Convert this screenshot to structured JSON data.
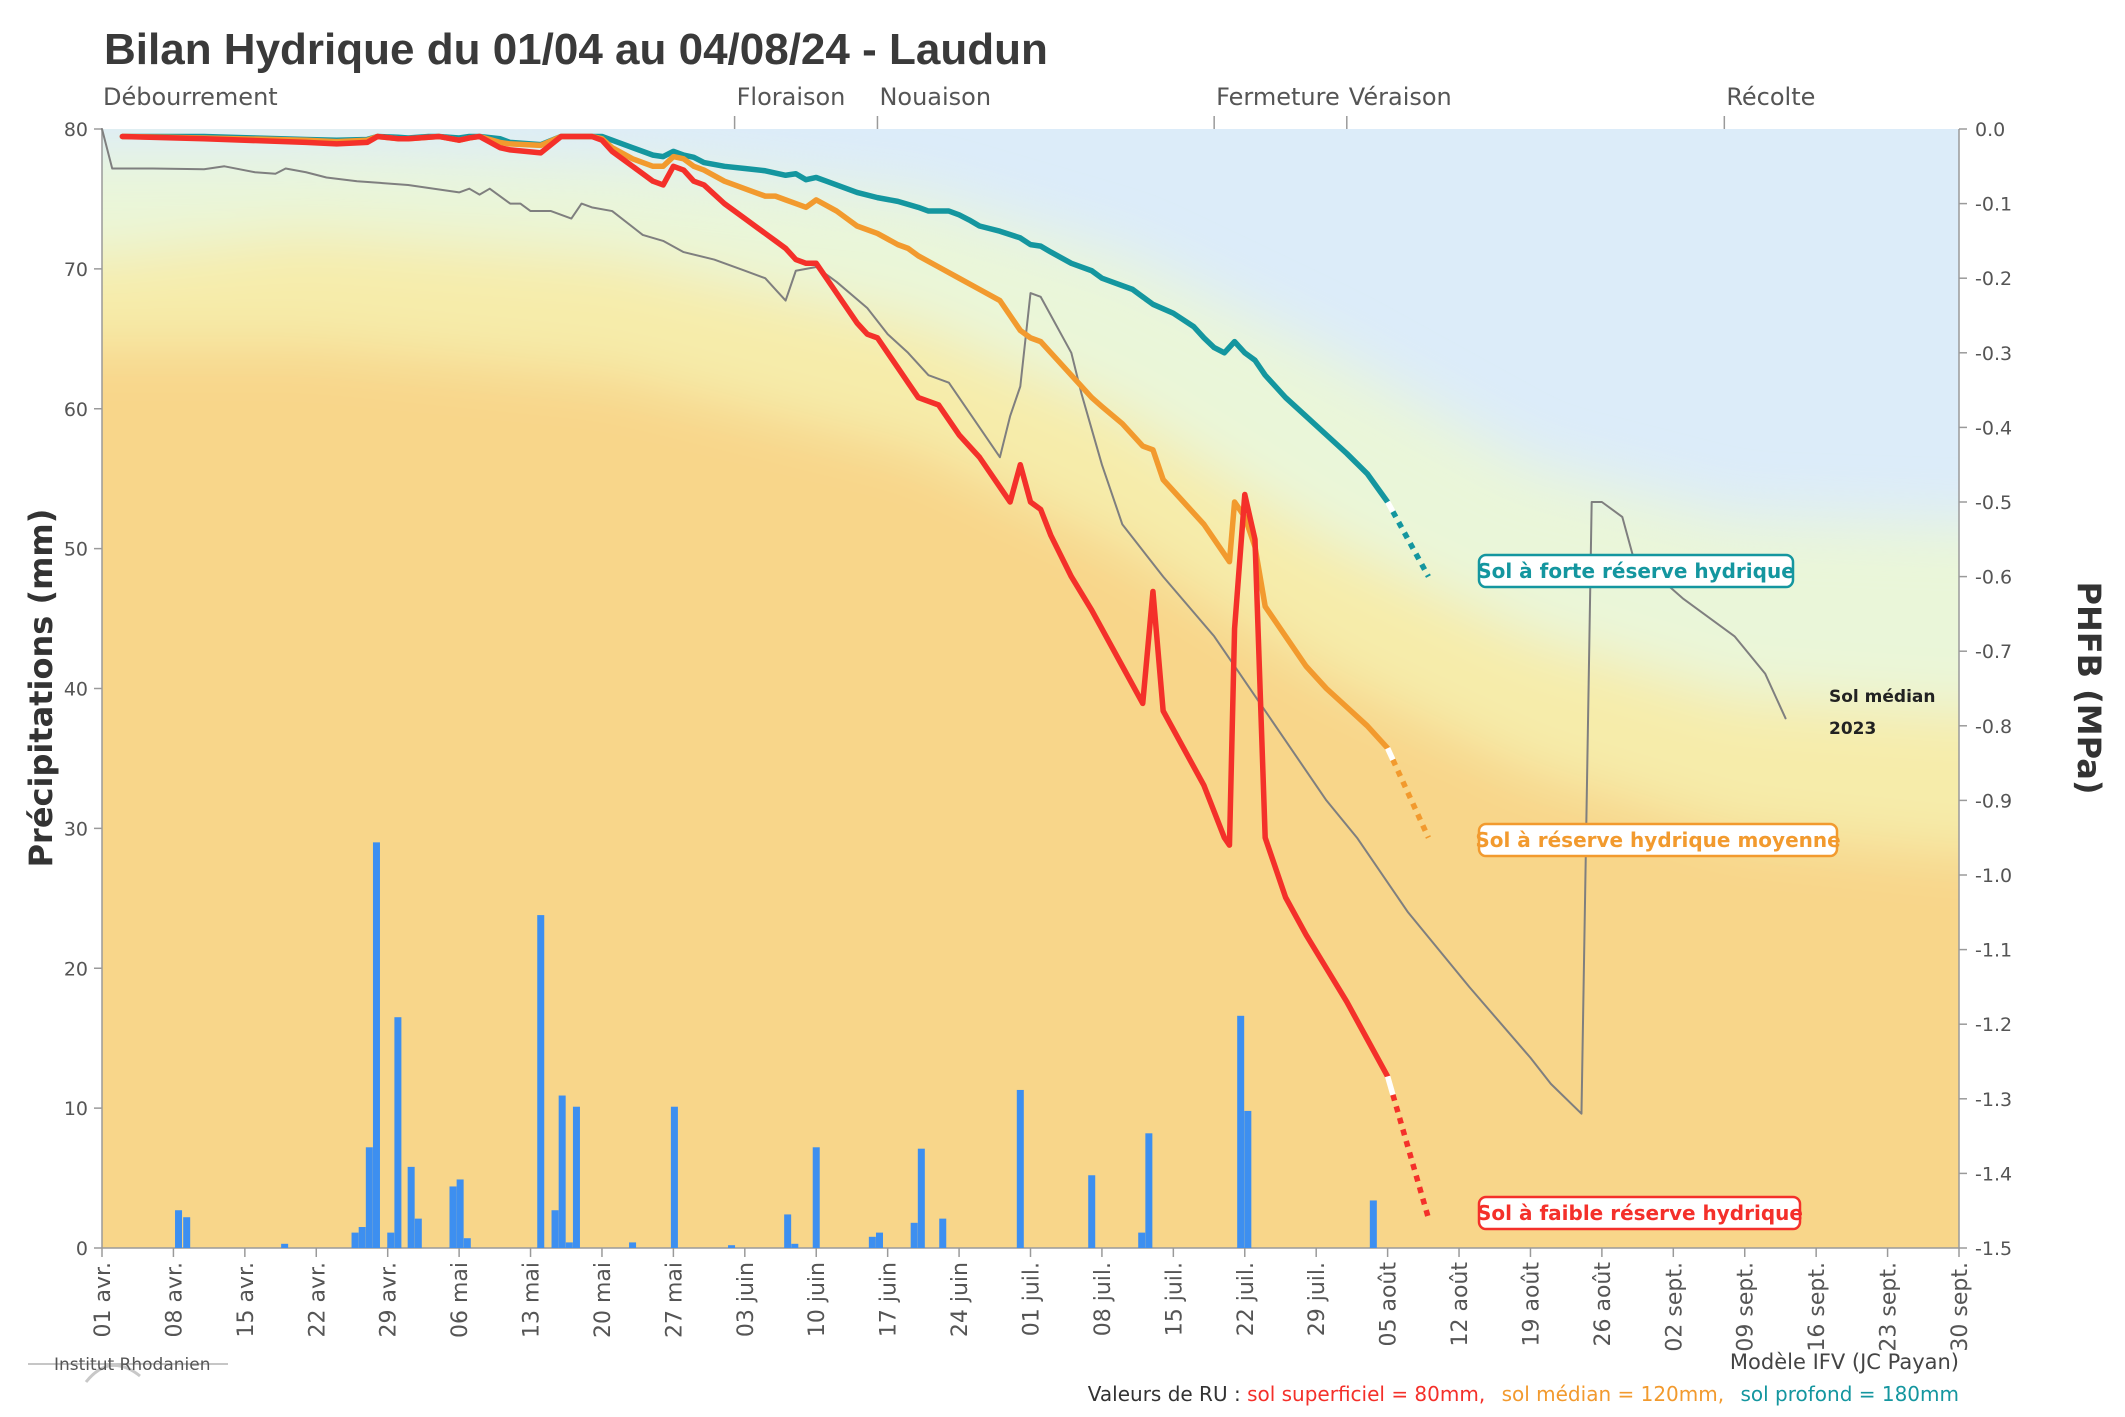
{
  "chart_data": {
    "type": "line",
    "title": "Bilan Hydrique du 01/04 au 04/08/24 - Laudun",
    "ylabel_left": "Précipitations (mm)",
    "ylabel_right": "PHFB (MPa)",
    "ylim_left": [
      0,
      80
    ],
    "ylim_right": [
      -1.5,
      0.0
    ],
    "y_ticks_left": [
      0,
      10,
      20,
      30,
      40,
      50,
      60,
      70,
      80
    ],
    "y_ticks_right": [
      0.0,
      -0.1,
      -0.2,
      -0.3,
      -0.4,
      -0.5,
      -0.6,
      -0.7,
      -0.8,
      -0.9,
      -1.0,
      -1.1,
      -1.2,
      -1.3,
      -1.4,
      -1.5
    ],
    "y_tick_labels_right": [
      "0.0",
      "-0.1",
      "-0.2",
      "-0.3",
      "-0.4",
      "-0.5",
      "-0.6",
      "-0.7",
      "-0.8",
      "-0.9",
      "-1.0",
      "-1.1",
      "-1.2",
      "-1.3",
      "-1.4",
      "-1.5"
    ],
    "x_day_range": [
      0,
      182
    ],
    "x_ticks": [
      {
        "day": 0,
        "label": "01 avr."
      },
      {
        "day": 7,
        "label": "08 avr."
      },
      {
        "day": 14,
        "label": "15 avr."
      },
      {
        "day": 21,
        "label": "22 avr."
      },
      {
        "day": 28,
        "label": "29 avr."
      },
      {
        "day": 35,
        "label": "06 mai"
      },
      {
        "day": 42,
        "label": "13 mai"
      },
      {
        "day": 49,
        "label": "20 mai"
      },
      {
        "day": 56,
        "label": "27 mai"
      },
      {
        "day": 63,
        "label": "03 juin"
      },
      {
        "day": 70,
        "label": "10 juin"
      },
      {
        "day": 77,
        "label": "17 juin"
      },
      {
        "day": 84,
        "label": "24 juin"
      },
      {
        "day": 91,
        "label": "01 juil."
      },
      {
        "day": 98,
        "label": "08 juil."
      },
      {
        "day": 105,
        "label": "15 juil."
      },
      {
        "day": 112,
        "label": "22 juil."
      },
      {
        "day": 119,
        "label": "29 juil."
      },
      {
        "day": 126,
        "label": "05 août"
      },
      {
        "day": 133,
        "label": "12 août"
      },
      {
        "day": 140,
        "label": "19 août"
      },
      {
        "day": 147,
        "label": "26 août"
      },
      {
        "day": 154,
        "label": "02 sept."
      },
      {
        "day": 161,
        "label": "09 sept."
      },
      {
        "day": 168,
        "label": "16 sept."
      },
      {
        "day": 175,
        "label": "23 sept."
      },
      {
        "day": 182,
        "label": "30 sept."
      }
    ],
    "stages": [
      {
        "day": 0,
        "label": "Débourrement"
      },
      {
        "day": 62,
        "label": "Floraison"
      },
      {
        "day": 76,
        "label": "Nouaison"
      },
      {
        "day": 109,
        "label": "Fermeture"
      },
      {
        "day": 122,
        "label": "Véraison"
      },
      {
        "day": 159,
        "label": "Récolte"
      }
    ],
    "precipitation": {
      "name": "Précipitations",
      "color": "#3d8ff0",
      "unit": "mm",
      "days": [
        7.5,
        8.3,
        17.9,
        24.8,
        25.5,
        26.2,
        26.9,
        28.3,
        29.0,
        30.3,
        31.0,
        34.4,
        35.1,
        35.8,
        43.0,
        44.4,
        45.1,
        45.8,
        46.5,
        52.0,
        56.1,
        61.7,
        67.2,
        67.9,
        70.0,
        75.5,
        76.2,
        79.6,
        80.3,
        82.4,
        90.0,
        97.0,
        101.9,
        102.6,
        111.6,
        112.3,
        124.6
      ],
      "values": [
        2.7,
        2.2,
        0.3,
        1.1,
        1.5,
        7.2,
        29.0,
        1.1,
        16.5,
        5.8,
        2.1,
        4.4,
        4.9,
        0.7,
        23.8,
        2.7,
        10.9,
        0.4,
        10.1,
        0.4,
        10.1,
        0.2,
        2.4,
        0.3,
        7.2,
        0.8,
        1.1,
        1.8,
        7.1,
        2.1,
        11.3,
        5.2,
        1.1,
        8.2,
        16.6,
        9.8,
        3.4
      ]
    },
    "series": [
      {
        "name": "Sol à forte réserve hydrique",
        "color": "#14969f",
        "x": [
          2,
          5,
          10,
          15,
          20,
          23,
          26,
          27,
          29,
          30,
          32,
          33,
          35,
          36,
          37,
          39,
          40,
          41,
          42,
          43,
          45,
          47,
          48,
          49,
          50,
          52,
          54,
          55,
          56,
          57,
          58,
          59,
          61,
          63,
          65,
          67,
          68,
          69,
          70,
          71,
          72,
          74,
          76,
          78,
          80,
          81,
          82,
          83,
          84,
          85,
          86,
          88,
          90,
          91,
          92,
          93,
          95,
          97,
          98,
          99,
          101,
          102,
          103,
          105,
          107,
          108,
          109,
          110,
          111,
          112,
          113,
          114,
          116,
          118,
          120,
          122,
          124,
          126
        ],
        "y": [
          -0.01,
          -0.01,
          -0.01,
          -0.012,
          -0.014,
          -0.015,
          -0.014,
          -0.01,
          -0.011,
          -0.012,
          -0.01,
          -0.01,
          -0.012,
          -0.01,
          -0.01,
          -0.013,
          -0.018,
          -0.019,
          -0.02,
          -0.021,
          -0.01,
          -0.01,
          -0.01,
          -0.01,
          -0.015,
          -0.025,
          -0.035,
          -0.037,
          -0.03,
          -0.035,
          -0.038,
          -0.045,
          -0.05,
          -0.053,
          -0.056,
          -0.062,
          -0.06,
          -0.068,
          -0.065,
          -0.07,
          -0.075,
          -0.085,
          -0.092,
          -0.097,
          -0.105,
          -0.11,
          -0.11,
          -0.11,
          -0.115,
          -0.122,
          -0.13,
          -0.137,
          -0.146,
          -0.155,
          -0.157,
          -0.165,
          -0.18,
          -0.19,
          -0.2,
          -0.205,
          -0.215,
          -0.225,
          -0.235,
          -0.247,
          -0.265,
          -0.28,
          -0.293,
          -0.3,
          -0.285,
          -0.3,
          -0.31,
          -0.33,
          -0.36,
          -0.385,
          -0.41,
          -0.435,
          -0.462,
          -0.5
        ],
        "forecast": {
          "x": [
            126,
            130
          ],
          "y": [
            -0.5,
            -0.6
          ]
        }
      },
      {
        "name": "Sol à réserve hydrique moyenne",
        "color": "#f29a2e",
        "x": [
          2,
          10,
          20,
          23,
          26,
          27,
          29,
          30,
          32,
          33,
          35,
          36,
          37,
          39,
          40,
          43,
          45,
          47,
          48,
          49,
          50,
          52,
          53,
          54,
          55,
          56,
          57,
          58,
          59,
          61,
          63,
          64,
          65,
          66,
          67,
          68,
          69,
          70,
          72,
          74,
          76,
          78,
          79,
          80,
          82,
          84,
          86,
          88,
          89,
          90,
          91,
          92,
          93,
          95,
          97,
          98,
          100,
          102,
          103,
          104,
          106,
          108,
          110,
          110.5,
          111,
          112,
          113,
          114,
          116,
          118,
          120,
          122,
          124,
          126
        ],
        "y": [
          -0.01,
          -0.012,
          -0.015,
          -0.017,
          -0.015,
          -0.01,
          -0.013,
          -0.013,
          -0.011,
          -0.01,
          -0.015,
          -0.012,
          -0.01,
          -0.018,
          -0.02,
          -0.022,
          -0.01,
          -0.01,
          -0.01,
          -0.013,
          -0.025,
          -0.04,
          -0.045,
          -0.05,
          -0.05,
          -0.037,
          -0.04,
          -0.05,
          -0.055,
          -0.07,
          -0.08,
          -0.085,
          -0.09,
          -0.09,
          -0.095,
          -0.1,
          -0.105,
          -0.095,
          -0.11,
          -0.13,
          -0.14,
          -0.155,
          -0.16,
          -0.17,
          -0.185,
          -0.2,
          -0.215,
          -0.23,
          -0.25,
          -0.27,
          -0.28,
          -0.285,
          -0.3,
          -0.33,
          -0.36,
          -0.372,
          -0.395,
          -0.425,
          -0.43,
          -0.47,
          -0.5,
          -0.53,
          -0.57,
          -0.58,
          -0.5,
          -0.52,
          -0.56,
          -0.64,
          -0.68,
          -0.72,
          -0.75,
          -0.775,
          -0.8,
          -0.83
        ],
        "forecast": {
          "x": [
            126,
            130
          ],
          "y": [
            -0.83,
            -0.95
          ]
        }
      },
      {
        "name": "Sol à faible réserve hydrique",
        "color": "#f4302a",
        "x": [
          2,
          10,
          20,
          23,
          26,
          27,
          29,
          30,
          32,
          33,
          35,
          36,
          37,
          39,
          40,
          43,
          45,
          47,
          48,
          49,
          50,
          52,
          53,
          54,
          55,
          56,
          57,
          58,
          59,
          61,
          63,
          64,
          65,
          66,
          67,
          68,
          69,
          70,
          72,
          74,
          75,
          76,
          77,
          78,
          79,
          80,
          82,
          84,
          86,
          88,
          89,
          90,
          91,
          92,
          93,
          95,
          97,
          98,
          100,
          102,
          103,
          104,
          106,
          108,
          110,
          110.5,
          111,
          112,
          113,
          114,
          116,
          118,
          120,
          122,
          124,
          126
        ],
        "y": [
          -0.01,
          -0.013,
          -0.018,
          -0.02,
          -0.018,
          -0.01,
          -0.013,
          -0.013,
          -0.011,
          -0.01,
          -0.015,
          -0.012,
          -0.01,
          -0.025,
          -0.028,
          -0.032,
          -0.01,
          -0.01,
          -0.01,
          -0.015,
          -0.03,
          -0.05,
          -0.06,
          -0.07,
          -0.075,
          -0.05,
          -0.055,
          -0.07,
          -0.075,
          -0.1,
          -0.12,
          -0.13,
          -0.14,
          -0.15,
          -0.16,
          -0.175,
          -0.18,
          -0.18,
          -0.22,
          -0.26,
          -0.275,
          -0.28,
          -0.3,
          -0.32,
          -0.34,
          -0.36,
          -0.37,
          -0.41,
          -0.44,
          -0.48,
          -0.5,
          -0.45,
          -0.5,
          -0.51,
          -0.545,
          -0.6,
          -0.645,
          -0.67,
          -0.72,
          -0.77,
          -0.62,
          -0.78,
          -0.83,
          -0.88,
          -0.95,
          -0.96,
          -0.67,
          -0.49,
          -0.55,
          -0.95,
          -1.03,
          -1.08,
          -1.125,
          -1.17,
          -1.22,
          -1.27
        ],
        "forecast": {
          "x": [
            126,
            130
          ],
          "y": [
            -1.27,
            -1.46
          ]
        }
      },
      {
        "name": "Sol médian 2023",
        "color": "#7f7f7f",
        "x": [
          0,
          1,
          5,
          10,
          12,
          15,
          17,
          18,
          20,
          22,
          25,
          30,
          35,
          36,
          37,
          38,
          40,
          41,
          42,
          44,
          46,
          47,
          48,
          50,
          53,
          55,
          57,
          60,
          63,
          65,
          66,
          67,
          68,
          70,
          72,
          75,
          77,
          79,
          81,
          83,
          85,
          88,
          89,
          90,
          91,
          92,
          93,
          95,
          96,
          98,
          100,
          104,
          109,
          111,
          113,
          116,
          120,
          123,
          128,
          134,
          140,
          142,
          145,
          146,
          147,
          149,
          150,
          155,
          160,
          163,
          165
        ],
        "y": [
          0.0,
          -0.053,
          -0.053,
          -0.054,
          -0.05,
          -0.058,
          -0.06,
          -0.053,
          -0.058,
          -0.065,
          -0.07,
          -0.075,
          -0.085,
          -0.08,
          -0.088,
          -0.08,
          -0.1,
          -0.1,
          -0.11,
          -0.11,
          -0.12,
          -0.1,
          -0.105,
          -0.11,
          -0.142,
          -0.15,
          -0.165,
          -0.175,
          -0.19,
          -0.2,
          -0.215,
          -0.23,
          -0.19,
          -0.185,
          -0.205,
          -0.24,
          -0.275,
          -0.3,
          -0.33,
          -0.34,
          -0.38,
          -0.44,
          -0.385,
          -0.345,
          -0.22,
          -0.225,
          -0.25,
          -0.3,
          -0.355,
          -0.45,
          -0.53,
          -0.6,
          -0.68,
          -0.72,
          -0.76,
          -0.82,
          -0.9,
          -0.95,
          -1.05,
          -1.15,
          -1.245,
          -1.28,
          -1.32,
          -0.5,
          -0.5,
          -0.52,
          -0.57,
          -0.63,
          -0.68,
          -0.73,
          -0.79
        ]
      }
    ],
    "labels": {
      "forte": "Sol à forte réserve hydrique",
      "moyenne": "Sol à réserve hydrique moyenne",
      "faible": "Sol à faible réserve hydrique",
      "median_line1": "Sol médian",
      "median_line2": "2023"
    },
    "footer": {
      "logo_text": "Institut Rhodanien",
      "model": "Modèle IFV (JC Payan)",
      "ru_prefix": "Valeurs de RU : ",
      "ru_superficiel": "sol superficiel = 80mm,",
      "ru_median": "sol médian = 120mm,",
      "ru_profond": "sol profond = 180mm"
    },
    "colors": {
      "forte": "#14969f",
      "moyenne": "#f29a2e",
      "faible": "#f4302a",
      "median": "#7f7f7f",
      "precip": "#3d8ff0",
      "band_blue": "#dcecf9",
      "band_pale_green": "#eaf6d9",
      "band_yellow": "#f6ecaa",
      "band_orange": "#f8d68a"
    }
  }
}
